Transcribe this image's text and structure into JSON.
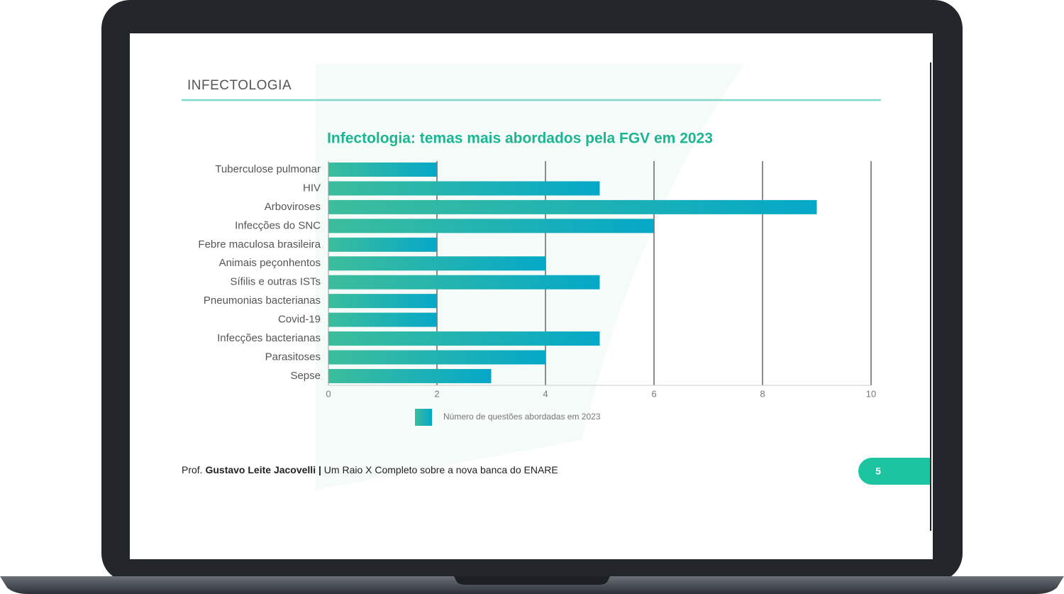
{
  "header": {
    "title": "INFECTOLOGIA"
  },
  "chart_data": {
    "type": "barh",
    "title": "Infectologia: temas mais abordados pela FGV em 2023",
    "categories": [
      "Tuberculose pulmonar",
      "HIV",
      "Arboviroses",
      "Infecções do SNC",
      "Febre maculosa brasileira",
      "Animais peçonhentos",
      "Sífilis e outras ISTs",
      "Pneumonias bacterianas",
      "Covid-19",
      "Infecções bacterianas",
      "Parasitoses",
      "Sepse"
    ],
    "series": [
      {
        "name": "Número de questões abordadas em 2023",
        "color": "#0fadbf",
        "color_gradient": [
          "#3cbd9c",
          "#05a8c8"
        ],
        "values": [
          2,
          5,
          9,
          6,
          2,
          4,
          5,
          2,
          2,
          5,
          4,
          3
        ]
      }
    ],
    "xlim": [
      0,
      10
    ],
    "xticks": [
      0,
      2,
      4,
      6,
      8,
      10
    ],
    "grid": true,
    "legend": "bottom"
  },
  "footer": {
    "prefix": "Prof.",
    "author": "Gustavo Leite Jacovelli",
    "separator": "|",
    "subtitle": "Um Raio X Completo sobre a nova banca do ENARE"
  },
  "page_number": "5"
}
